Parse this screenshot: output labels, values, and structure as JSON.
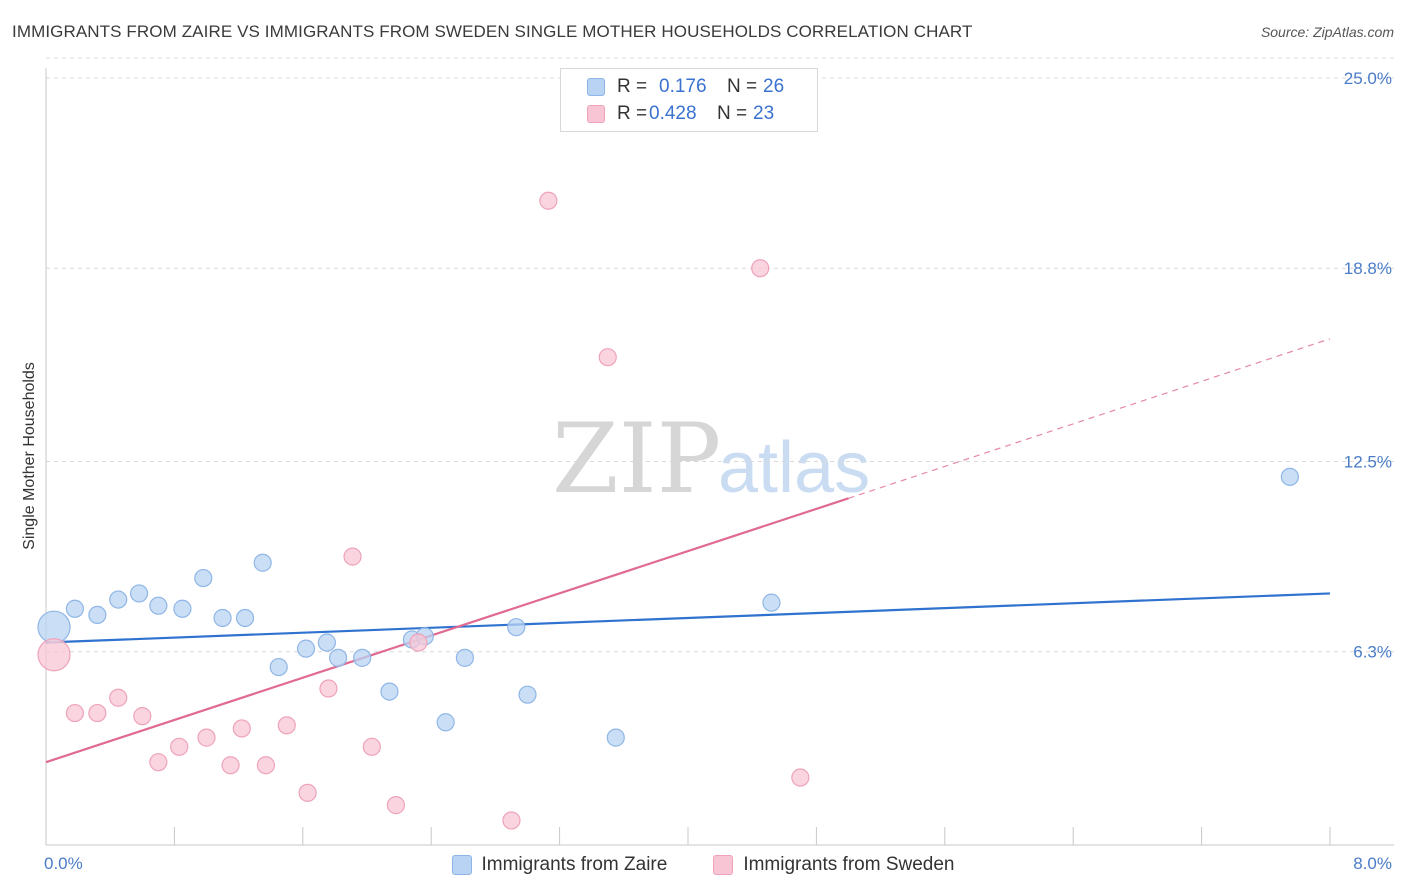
{
  "title": "IMMIGRANTS FROM ZAIRE VS IMMIGRANTS FROM SWEDEN SINGLE MOTHER HOUSEHOLDS CORRELATION CHART",
  "source": "Source: ZipAtlas.com",
  "watermark": {
    "zip": "ZIP",
    "atlas": "atlas"
  },
  "legend": {
    "rows": [
      {
        "r_label": "R =",
        "r_value": "0.176",
        "n_label": "N =",
        "n_value": "26"
      },
      {
        "r_label": "R =",
        "r_value": "0.428",
        "n_label": "N =",
        "n_value": "23"
      }
    ]
  },
  "bottom_legend": {
    "zaire": "Immigrants from Zaire",
    "sweden": "Immigrants from Sweden"
  },
  "colors": {
    "zaire_fill": "#b8d3f3",
    "zaire_stroke": "#8fb6e6",
    "zaire_line": "#2f72cf",
    "sweden_fill": "#f8c5d4",
    "sweden_stroke": "#eea3ba",
    "sweden_line": "#e06a92",
    "grid": "#d8d8d8",
    "tick_text": "#4a7cc7"
  },
  "chart_data": {
    "type": "scatter",
    "title": "IMMIGRANTS FROM ZAIRE VS IMMIGRANTS FROM SWEDEN SINGLE MOTHER HOUSEHOLDS CORRELATION CHART",
    "xlabel": "",
    "ylabel": "Single Mother Households",
    "xlim": [
      0,
      8.0
    ],
    "ylim": [
      0,
      25.0
    ],
    "x_tick_labels": [
      "0.0%",
      "8.0%"
    ],
    "y_ticks": [
      6.3,
      12.5,
      18.8,
      25.0
    ],
    "y_tick_labels": [
      "6.3%",
      "12.5%",
      "18.8%",
      "25.0%"
    ],
    "grid": true,
    "series": [
      {
        "name": "Immigrants from Zaire",
        "R": 0.176,
        "N": 26,
        "trend": {
          "x0": 0.0,
          "y0": 6.6,
          "x1": 8.0,
          "y1": 8.2,
          "dashed_after": null
        },
        "points": [
          {
            "x": 0.05,
            "y": 7.1,
            "size": "large"
          },
          {
            "x": 0.18,
            "y": 7.7
          },
          {
            "x": 0.32,
            "y": 7.5
          },
          {
            "x": 0.45,
            "y": 8.0
          },
          {
            "x": 0.58,
            "y": 8.2
          },
          {
            "x": 0.7,
            "y": 7.8
          },
          {
            "x": 0.85,
            "y": 7.7
          },
          {
            "x": 0.98,
            "y": 8.7
          },
          {
            "x": 1.1,
            "y": 7.4
          },
          {
            "x": 1.24,
            "y": 7.4
          },
          {
            "x": 1.35,
            "y": 9.2
          },
          {
            "x": 1.45,
            "y": 5.8
          },
          {
            "x": 1.62,
            "y": 6.4
          },
          {
            "x": 1.75,
            "y": 6.6
          },
          {
            "x": 1.82,
            "y": 6.1
          },
          {
            "x": 1.97,
            "y": 6.1
          },
          {
            "x": 2.14,
            "y": 5.0
          },
          {
            "x": 2.28,
            "y": 6.7
          },
          {
            "x": 2.36,
            "y": 6.8
          },
          {
            "x": 2.49,
            "y": 4.0
          },
          {
            "x": 2.61,
            "y": 6.1
          },
          {
            "x": 2.93,
            "y": 7.1
          },
          {
            "x": 3.0,
            "y": 4.9
          },
          {
            "x": 3.55,
            "y": 3.5
          },
          {
            "x": 4.52,
            "y": 7.9
          },
          {
            "x": 7.75,
            "y": 12.0
          }
        ]
      },
      {
        "name": "Immigrants from Sweden",
        "R": 0.428,
        "N": 23,
        "trend": {
          "x0": 0.0,
          "y0": 2.7,
          "x1": 5.0,
          "y1": 11.3,
          "dashed_to": {
            "x": 8.0,
            "y": 16.5
          }
        },
        "points": [
          {
            "x": 0.05,
            "y": 6.2,
            "size": "large"
          },
          {
            "x": 0.18,
            "y": 4.3
          },
          {
            "x": 0.32,
            "y": 4.3
          },
          {
            "x": 0.45,
            "y": 4.8
          },
          {
            "x": 0.6,
            "y": 4.2
          },
          {
            "x": 0.7,
            "y": 2.7
          },
          {
            "x": 0.83,
            "y": 3.2
          },
          {
            "x": 1.0,
            "y": 3.5
          },
          {
            "x": 1.15,
            "y": 2.6
          },
          {
            "x": 1.22,
            "y": 3.8
          },
          {
            "x": 1.37,
            "y": 2.6
          },
          {
            "x": 1.5,
            "y": 3.9
          },
          {
            "x": 1.63,
            "y": 1.7
          },
          {
            "x": 1.76,
            "y": 5.1
          },
          {
            "x": 1.91,
            "y": 9.4
          },
          {
            "x": 2.03,
            "y": 3.2
          },
          {
            "x": 2.18,
            "y": 1.3
          },
          {
            "x": 2.32,
            "y": 6.6
          },
          {
            "x": 2.9,
            "y": 0.8
          },
          {
            "x": 3.13,
            "y": 21.0
          },
          {
            "x": 3.5,
            "y": 15.9
          },
          {
            "x": 4.45,
            "y": 18.8
          },
          {
            "x": 4.7,
            "y": 2.2
          }
        ]
      }
    ]
  }
}
